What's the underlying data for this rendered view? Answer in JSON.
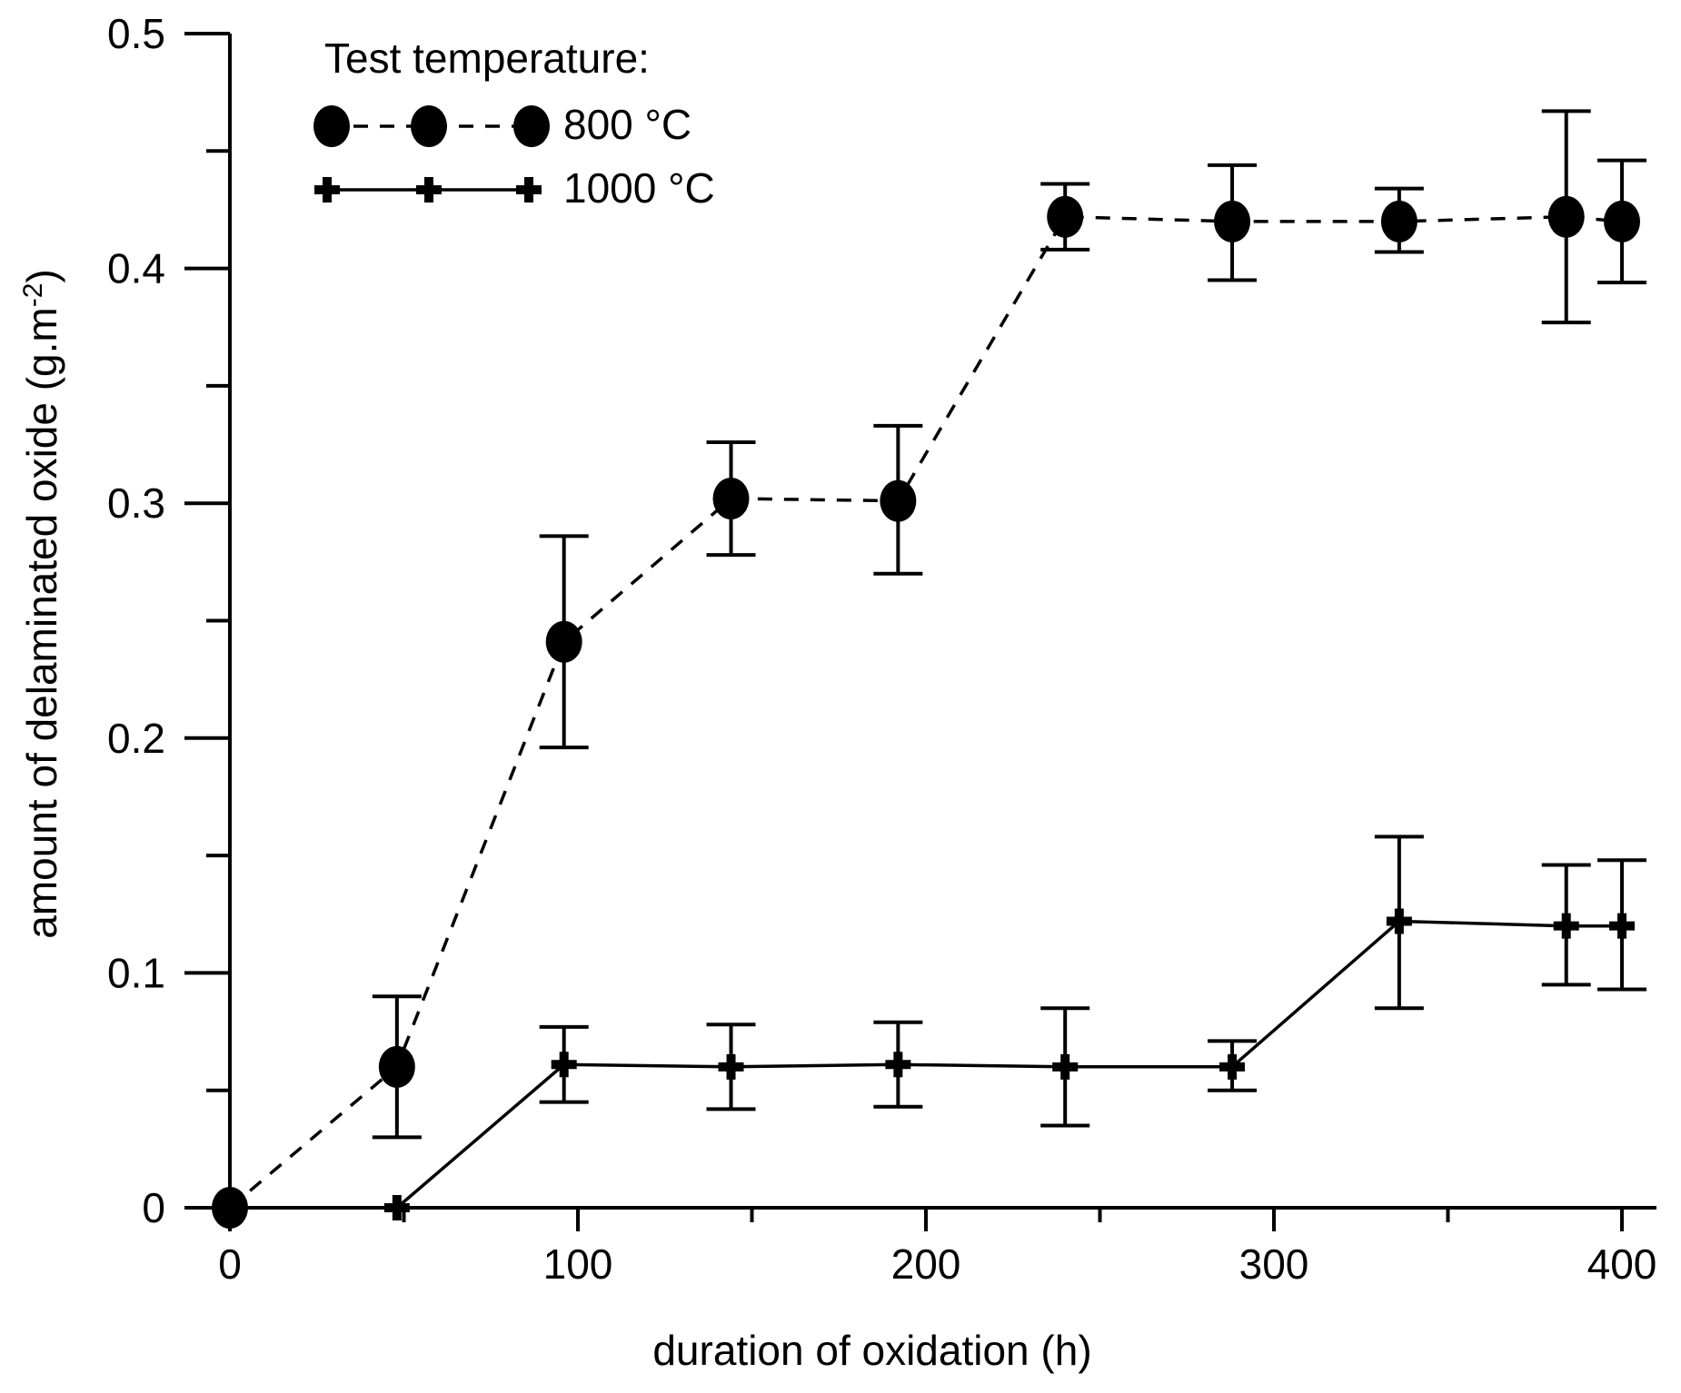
{
  "chart_data": {
    "type": "line",
    "xlabel": "duration of oxidation (h)",
    "ylabel_main": "amount of delaminated oxide (g.m",
    "ylabel_sup": "-2",
    "ylabel_close": ")",
    "xlim": [
      0,
      400
    ],
    "ylim": [
      0,
      0.5
    ],
    "x_ticks": [
      0,
      100,
      200,
      300,
      400
    ],
    "x_tick_labels": [
      "0",
      "100",
      "200",
      "300",
      "400"
    ],
    "y_ticks": [
      0,
      0.1,
      0.2,
      0.3,
      0.4,
      0.5
    ],
    "y_tick_labels": [
      "0",
      "0.1",
      "0.2",
      "0.3",
      "0.4",
      "0.5"
    ],
    "x_minor_step": 50,
    "y_minor_step": 0.05,
    "grid": false,
    "legend": {
      "title": "Test temperature:",
      "placement": "top-left"
    },
    "series": [
      {
        "name": "800 °C",
        "marker": "circle",
        "line_style": "dashed",
        "x": [
          0,
          48,
          96,
          144,
          192,
          240,
          288,
          336,
          384,
          400
        ],
        "y": [
          0,
          0.06,
          0.241,
          0.302,
          0.301,
          0.422,
          0.42,
          0.42,
          0.422,
          0.42
        ],
        "err_low": [
          0,
          0.03,
          0.196,
          0.278,
          0.27,
          0.408,
          0.395,
          0.407,
          0.377,
          0.394
        ],
        "err_high": [
          0,
          0.09,
          0.286,
          0.326,
          0.333,
          0.436,
          0.444,
          0.434,
          0.467,
          0.446
        ]
      },
      {
        "name": "1000 °C",
        "marker": "plus",
        "line_style": "solid",
        "x": [
          48,
          96,
          144,
          192,
          240,
          288,
          336,
          384,
          400
        ],
        "y": [
          0,
          0.061,
          0.06,
          0.061,
          0.06,
          0.06,
          0.122,
          0.12,
          0.12
        ],
        "err_low": [
          0,
          0.045,
          0.042,
          0.043,
          0.035,
          0.05,
          0.085,
          0.095,
          0.093
        ],
        "err_high": [
          0,
          0.077,
          0.078,
          0.079,
          0.085,
          0.071,
          0.158,
          0.146,
          0.148
        ]
      }
    ]
  }
}
